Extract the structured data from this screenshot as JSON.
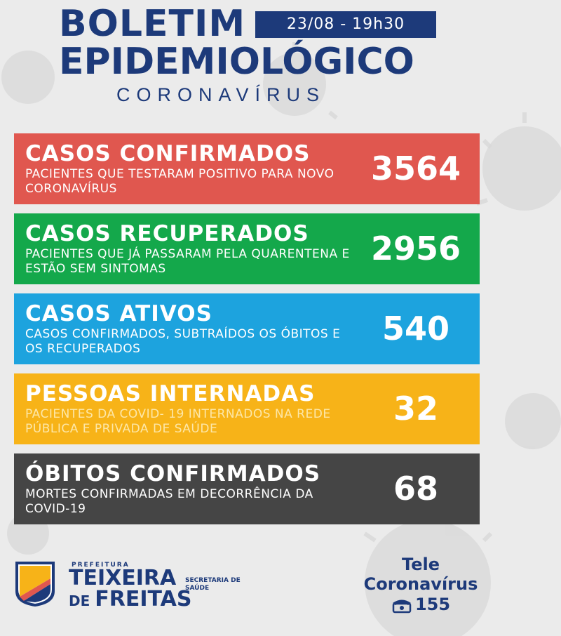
{
  "header": {
    "title_line1": "BOLETIM",
    "title_line2": "EPIDEMIOLÓGICO",
    "date": "23/08 - 19h30",
    "subtitle": "CORONAVÍRUS"
  },
  "cards": [
    {
      "title": "CASOS CONFIRMADOS",
      "desc": "PACIENTES QUE TESTARAM POSITIVO PARA NOVO CORONAVÍRUS",
      "value": "3564",
      "color": "#e0574f"
    },
    {
      "title": "CASOS RECUPERADOS",
      "desc": "PACIENTES QUE JÁ PASSARAM PELA QUARENTENA E ESTÃO SEM SINTOMAS",
      "value": "2956",
      "color": "#14a84b"
    },
    {
      "title": "CASOS ATIVOS",
      "desc": "CASOS CONFIRMADOS, SUBTRAÍDOS OS ÓBITOS E OS RECUPERADOS",
      "value": "540",
      "color": "#1da3de"
    },
    {
      "title": "PESSOAS INTERNADAS",
      "desc": "PACIENTES DA COVID- 19 INTERNADOS NA REDE PÚBLICA E PRIVADA DE SAÚDE",
      "value": "32",
      "color": "#f7b318"
    },
    {
      "title": "ÓBITOS CONFIRMADOS",
      "desc": "MORTES CONFIRMADAS EM DECORRÊNCIA DA COVID-19",
      "value": "68",
      "color": "#454545"
    }
  ],
  "footer": {
    "logo_top": "PREFEITURA",
    "logo_name1": "TEIXEIRA",
    "logo_de": "DE ",
    "logo_name2": "FREITAS",
    "logo_secretaria": "SECRETARIA DE SAÚDE",
    "tele_line1": "Tele",
    "tele_line2": "Coronavírus",
    "tele_number": "155",
    "phone_icon": "phone-icon"
  },
  "colors": {
    "navy": "#1d3a7a",
    "background": "#ebebeb"
  }
}
